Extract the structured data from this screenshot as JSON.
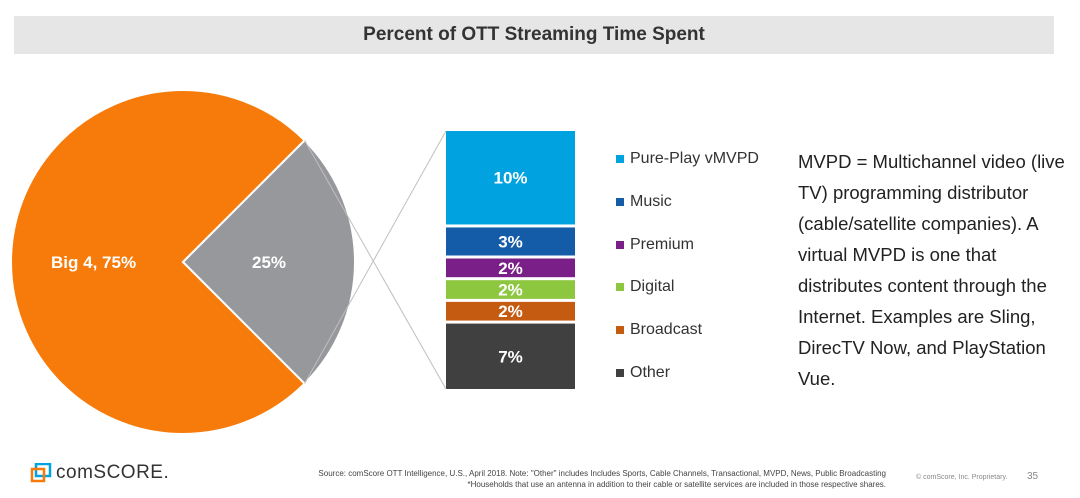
{
  "chart_data": {
    "title": "Percent of OTT Streaming Time Spent",
    "pie": {
      "type": "pie",
      "slices": [
        {
          "label": "Big 4, 75%",
          "value": 75,
          "color": "#f77b0a"
        },
        {
          "label": "25%",
          "value": 25,
          "color": "#97989c"
        }
      ]
    },
    "breakdown": {
      "type": "bar",
      "stacked": true,
      "series": [
        {
          "name": "Pure-Play vMVPD",
          "value": 10,
          "label": "10%",
          "color": "#00a2e0"
        },
        {
          "name": "Music",
          "value": 3,
          "label": "3%",
          "color": "#155ca8"
        },
        {
          "name": "Premium",
          "value": 2,
          "label": "2%",
          "color": "#7a1f87"
        },
        {
          "name": "Digital",
          "value": 2,
          "label": "2%",
          "color": "#8dc63f"
        },
        {
          "name": "Broadcast",
          "value": 2,
          "label": "2%",
          "color": "#c55a11"
        },
        {
          "name": "Other",
          "value": 7,
          "label": "7%",
          "color": "#404040"
        }
      ],
      "legend_position": "right"
    }
  },
  "note": "MVPD = Multichannel video (live TV) programming distributor (cable/satellite companies).  A virtual MVPD is one that distributes content through the Internet.  Examples are Sling, DirecTV Now, and PlayStation Vue.",
  "footer": {
    "logo": "comSCORE.",
    "source_line1": "Source: comScore OTT Intelligence, U.S., April 2018. Note: \"Other\" includes Includes Sports, Cable Channels, Transactional, MVPD, News, Public Broadcasting",
    "source_line2": "*Households that use an antenna in addition to their cable or satellite services are included in those respective shares.",
    "copyright": "© comScore, Inc. Proprietary.",
    "page": "35"
  }
}
